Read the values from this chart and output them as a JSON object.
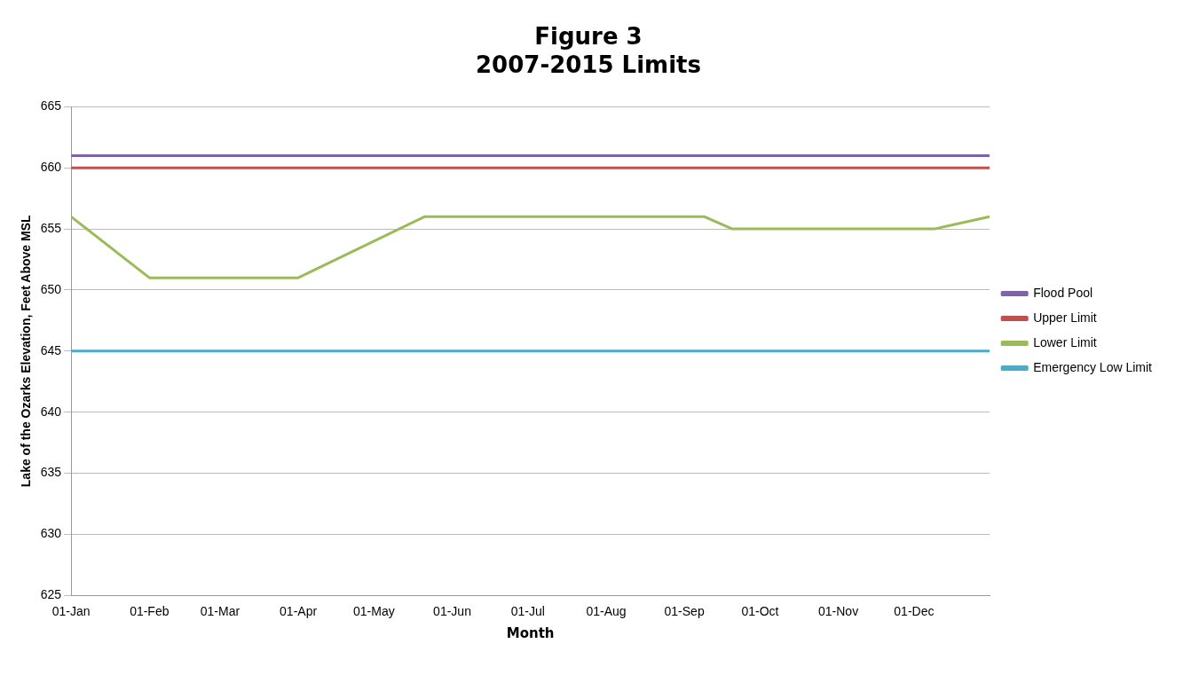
{
  "chart_data": {
    "type": "line",
    "title": "Figure 3",
    "subtitle": "2007-2015 Limits",
    "xlabel": "Month",
    "ylabel": "Lake of the Ozarks Elevation, Feet Above MSL",
    "series": [
      {
        "name": "Flood Pool",
        "color": "#7f63a8",
        "x": [
          "--01-01",
          "--12-31"
        ],
        "values": [
          661,
          661
        ]
      },
      {
        "name": "Upper Limit",
        "color": "#c0504d",
        "x": [
          "--01-01",
          "--12-31"
        ],
        "values": [
          660,
          660
        ]
      },
      {
        "name": "Lower Limit",
        "color": "#9bbb59",
        "x": [
          "--01-01",
          "--02-01",
          "--04-01",
          "--05-21",
          "--09-09",
          "--09-20",
          "--12-09",
          "--12-31"
        ],
        "values": [
          656,
          651,
          651,
          656,
          656,
          655,
          655,
          656
        ]
      },
      {
        "name": "Emergency Low Limit",
        "color": "#4bacc6",
        "x": [
          "--01-01",
          "--12-31"
        ],
        "values": [
          645,
          645
        ]
      }
    ],
    "xlim": [
      "--01-01",
      "--12-31"
    ],
    "xticks": [
      {
        "value": "--01-01",
        "label": "01-Jan"
      },
      {
        "value": "--02-01",
        "label": "01-Feb"
      },
      {
        "value": "--03-01",
        "label": "01-Mar"
      },
      {
        "value": "--04-01",
        "label": "01-Apr"
      },
      {
        "value": "--05-01",
        "label": "01-May"
      },
      {
        "value": "--06-01",
        "label": "01-Jun"
      },
      {
        "value": "--07-01",
        "label": "01-Jul"
      },
      {
        "value": "--08-01",
        "label": "01-Aug"
      },
      {
        "value": "--09-01",
        "label": "01-Sep"
      },
      {
        "value": "--10-01",
        "label": "01-Oct"
      },
      {
        "value": "--11-01",
        "label": "01-Nov"
      },
      {
        "value": "--12-01",
        "label": "01-Dec"
      }
    ],
    "ylim": [
      625,
      665
    ],
    "yticks": [
      625,
      630,
      635,
      640,
      645,
      650,
      655,
      660,
      665
    ],
    "grid": "y",
    "legend": "right",
    "marker": "none",
    "line_style": "solid"
  }
}
